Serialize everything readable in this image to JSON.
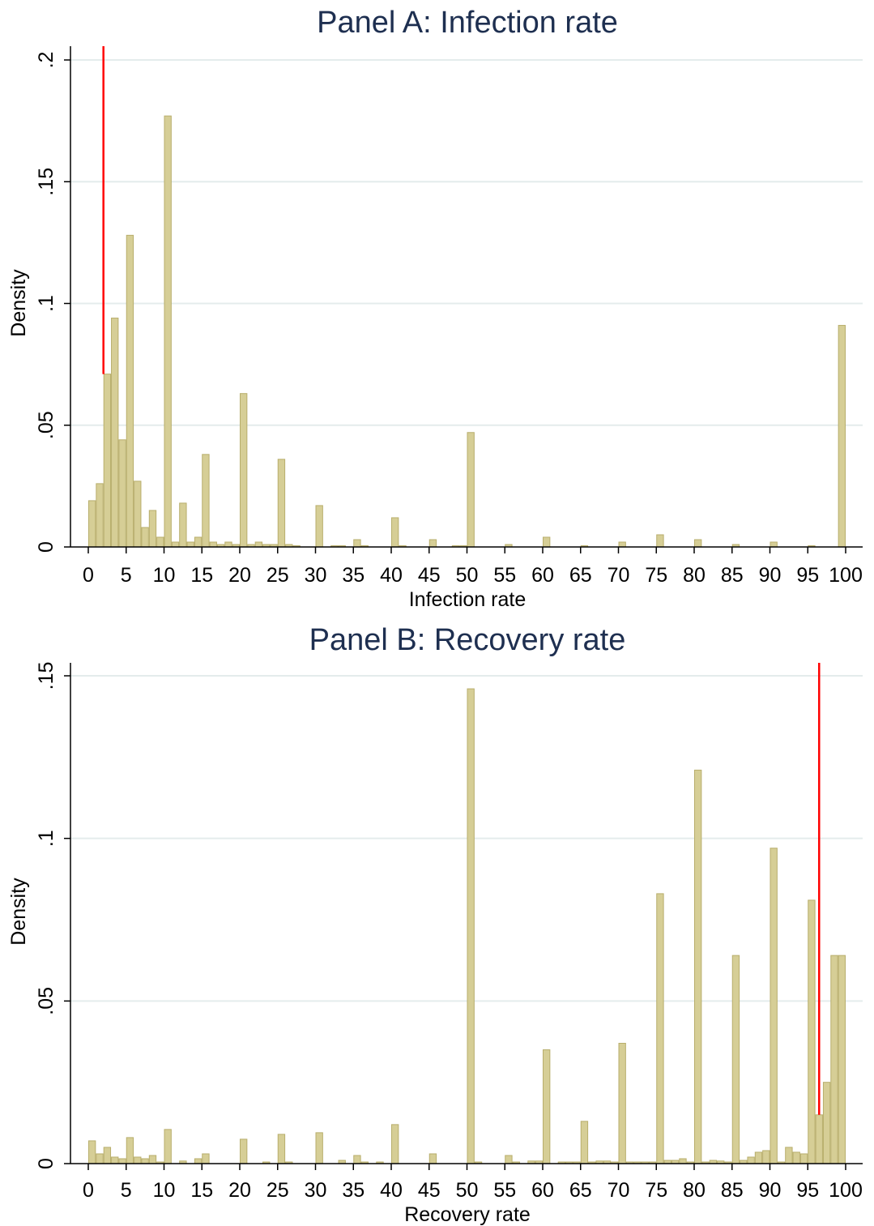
{
  "chart_data": [
    {
      "type": "bar",
      "title": "Panel A: Infection rate",
      "xlabel": "Infection rate",
      "ylabel": "Density",
      "xlim": [
        0,
        100
      ],
      "ylim": [
        0,
        0.2
      ],
      "xticks": [
        "0",
        "5",
        "10",
        "15",
        "20",
        "25",
        "30",
        "35",
        "40",
        "45",
        "50",
        "55",
        "60",
        "65",
        "70",
        "75",
        "80",
        "85",
        "90",
        "95",
        "100"
      ],
      "yticks": [
        "0",
        ".05",
        ".1",
        ".15",
        ".2"
      ],
      "ytick_values": [
        0,
        0.05,
        0.1,
        0.15,
        0.2
      ],
      "grid": true,
      "bar_color": "#d6ce96",
      "bar_edge_color": "#b8ae6c",
      "reference_line": {
        "x": 2,
        "color": "#ff0000"
      },
      "bars": [
        {
          "x": 0.5,
          "y": 0.019
        },
        {
          "x": 1.5,
          "y": 0.026
        },
        {
          "x": 2.5,
          "y": 0.071
        },
        {
          "x": 3.5,
          "y": 0.094
        },
        {
          "x": 4.5,
          "y": 0.044
        },
        {
          "x": 5.5,
          "y": 0.128
        },
        {
          "x": 6.5,
          "y": 0.027
        },
        {
          "x": 7.5,
          "y": 0.008
        },
        {
          "x": 8.5,
          "y": 0.015
        },
        {
          "x": 9.5,
          "y": 0.004
        },
        {
          "x": 10.5,
          "y": 0.177
        },
        {
          "x": 11.5,
          "y": 0.002
        },
        {
          "x": 12.5,
          "y": 0.018
        },
        {
          "x": 13.5,
          "y": 0.002
        },
        {
          "x": 14.5,
          "y": 0.004
        },
        {
          "x": 15.5,
          "y": 0.038
        },
        {
          "x": 16.5,
          "y": 0.002
        },
        {
          "x": 17.5,
          "y": 0.001
        },
        {
          "x": 18.5,
          "y": 0.002
        },
        {
          "x": 19.5,
          "y": 0.001
        },
        {
          "x": 20.5,
          "y": 0.063
        },
        {
          "x": 21.5,
          "y": 0.001
        },
        {
          "x": 22.5,
          "y": 0.002
        },
        {
          "x": 23.5,
          "y": 0.001
        },
        {
          "x": 24.5,
          "y": 0.001
        },
        {
          "x": 25.5,
          "y": 0.036
        },
        {
          "x": 26.5,
          "y": 0.001
        },
        {
          "x": 27.5,
          "y": 0.0005
        },
        {
          "x": 30.5,
          "y": 0.017
        },
        {
          "x": 32.5,
          "y": 0.0005
        },
        {
          "x": 33.5,
          "y": 0.0005
        },
        {
          "x": 35.5,
          "y": 0.003
        },
        {
          "x": 36.5,
          "y": 0.0005
        },
        {
          "x": 40.5,
          "y": 0.012
        },
        {
          "x": 41.5,
          "y": 0.0005
        },
        {
          "x": 45.5,
          "y": 0.003
        },
        {
          "x": 48.5,
          "y": 0.0005
        },
        {
          "x": 49.5,
          "y": 0.0005
        },
        {
          "x": 50.5,
          "y": 0.047
        },
        {
          "x": 55.5,
          "y": 0.001
        },
        {
          "x": 60.5,
          "y": 0.004
        },
        {
          "x": 65.5,
          "y": 0.0005
        },
        {
          "x": 70.5,
          "y": 0.002
        },
        {
          "x": 75.5,
          "y": 0.005
        },
        {
          "x": 80.5,
          "y": 0.003
        },
        {
          "x": 85.5,
          "y": 0.001
        },
        {
          "x": 90.5,
          "y": 0.002
        },
        {
          "x": 95.5,
          "y": 0.0005
        },
        {
          "x": 99.5,
          "y": 0.091
        }
      ]
    },
    {
      "type": "bar",
      "title": "Panel B: Recovery rate",
      "xlabel": "Recovery rate",
      "ylabel": "Density",
      "xlim": [
        0,
        100
      ],
      "ylim": [
        0,
        0.15
      ],
      "xticks": [
        "0",
        "5",
        "10",
        "15",
        "20",
        "25",
        "30",
        "35",
        "40",
        "45",
        "50",
        "55",
        "60",
        "65",
        "70",
        "75",
        "80",
        "85",
        "90",
        "95",
        "100"
      ],
      "yticks": [
        "0",
        ".05",
        ".1",
        ".15"
      ],
      "ytick_values": [
        0,
        0.05,
        0.1,
        0.15
      ],
      "grid": true,
      "bar_color": "#d6ce96",
      "bar_edge_color": "#b8ae6c",
      "reference_line": {
        "x": 96.5,
        "color": "#ff0000"
      },
      "bars": [
        {
          "x": 0.5,
          "y": 0.007
        },
        {
          "x": 1.5,
          "y": 0.003
        },
        {
          "x": 2.5,
          "y": 0.005
        },
        {
          "x": 3.5,
          "y": 0.002
        },
        {
          "x": 4.5,
          "y": 0.0015
        },
        {
          "x": 5.5,
          "y": 0.008
        },
        {
          "x": 6.5,
          "y": 0.002
        },
        {
          "x": 7.5,
          "y": 0.0015
        },
        {
          "x": 8.5,
          "y": 0.0025
        },
        {
          "x": 9.5,
          "y": 0.0005
        },
        {
          "x": 10.5,
          "y": 0.0105
        },
        {
          "x": 12.5,
          "y": 0.0008
        },
        {
          "x": 14.5,
          "y": 0.0015
        },
        {
          "x": 15.5,
          "y": 0.003
        },
        {
          "x": 20.5,
          "y": 0.0075
        },
        {
          "x": 23.5,
          "y": 0.0005
        },
        {
          "x": 25.5,
          "y": 0.009
        },
        {
          "x": 26.5,
          "y": 0.0005
        },
        {
          "x": 30.5,
          "y": 0.0095
        },
        {
          "x": 33.5,
          "y": 0.001
        },
        {
          "x": 35.5,
          "y": 0.0025
        },
        {
          "x": 36.5,
          "y": 0.0005
        },
        {
          "x": 38.5,
          "y": 0.0005
        },
        {
          "x": 40.5,
          "y": 0.012
        },
        {
          "x": 45.5,
          "y": 0.003
        },
        {
          "x": 50.5,
          "y": 0.146
        },
        {
          "x": 51.5,
          "y": 0.0005
        },
        {
          "x": 55.5,
          "y": 0.0025
        },
        {
          "x": 56.5,
          "y": 0.0005
        },
        {
          "x": 58.5,
          "y": 0.0008
        },
        {
          "x": 59.5,
          "y": 0.0008
        },
        {
          "x": 60.5,
          "y": 0.035
        },
        {
          "x": 62.5,
          "y": 0.0005
        },
        {
          "x": 63.5,
          "y": 0.0005
        },
        {
          "x": 64.5,
          "y": 0.0005
        },
        {
          "x": 65.5,
          "y": 0.013
        },
        {
          "x": 66.5,
          "y": 0.0005
        },
        {
          "x": 67.5,
          "y": 0.0008
        },
        {
          "x": 68.5,
          "y": 0.0008
        },
        {
          "x": 69.5,
          "y": 0.0005
        },
        {
          "x": 70.5,
          "y": 0.037
        },
        {
          "x": 71.5,
          "y": 0.0005
        },
        {
          "x": 72.5,
          "y": 0.0005
        },
        {
          "x": 73.5,
          "y": 0.0005
        },
        {
          "x": 74.5,
          "y": 0.0005
        },
        {
          "x": 75.5,
          "y": 0.083
        },
        {
          "x": 76.5,
          "y": 0.001
        },
        {
          "x": 77.5,
          "y": 0.001
        },
        {
          "x": 78.5,
          "y": 0.0015
        },
        {
          "x": 79.5,
          "y": 0.0005
        },
        {
          "x": 80.5,
          "y": 0.121
        },
        {
          "x": 81.5,
          "y": 0.0005
        },
        {
          "x": 82.5,
          "y": 0.001
        },
        {
          "x": 83.5,
          "y": 0.0008
        },
        {
          "x": 84.5,
          "y": 0.0005
        },
        {
          "x": 85.5,
          "y": 0.064
        },
        {
          "x": 86.5,
          "y": 0.001
        },
        {
          "x": 87.5,
          "y": 0.002
        },
        {
          "x": 88.5,
          "y": 0.0035
        },
        {
          "x": 89.5,
          "y": 0.004
        },
        {
          "x": 90.5,
          "y": 0.097
        },
        {
          "x": 91.5,
          "y": 0.0005
        },
        {
          "x": 92.5,
          "y": 0.005
        },
        {
          "x": 93.5,
          "y": 0.0035
        },
        {
          "x": 94.5,
          "y": 0.003
        },
        {
          "x": 95.5,
          "y": 0.081
        },
        {
          "x": 96.5,
          "y": 0.015
        },
        {
          "x": 97.5,
          "y": 0.025
        },
        {
          "x": 98.5,
          "y": 0.064
        },
        {
          "x": 99.5,
          "y": 0.064
        }
      ]
    }
  ]
}
